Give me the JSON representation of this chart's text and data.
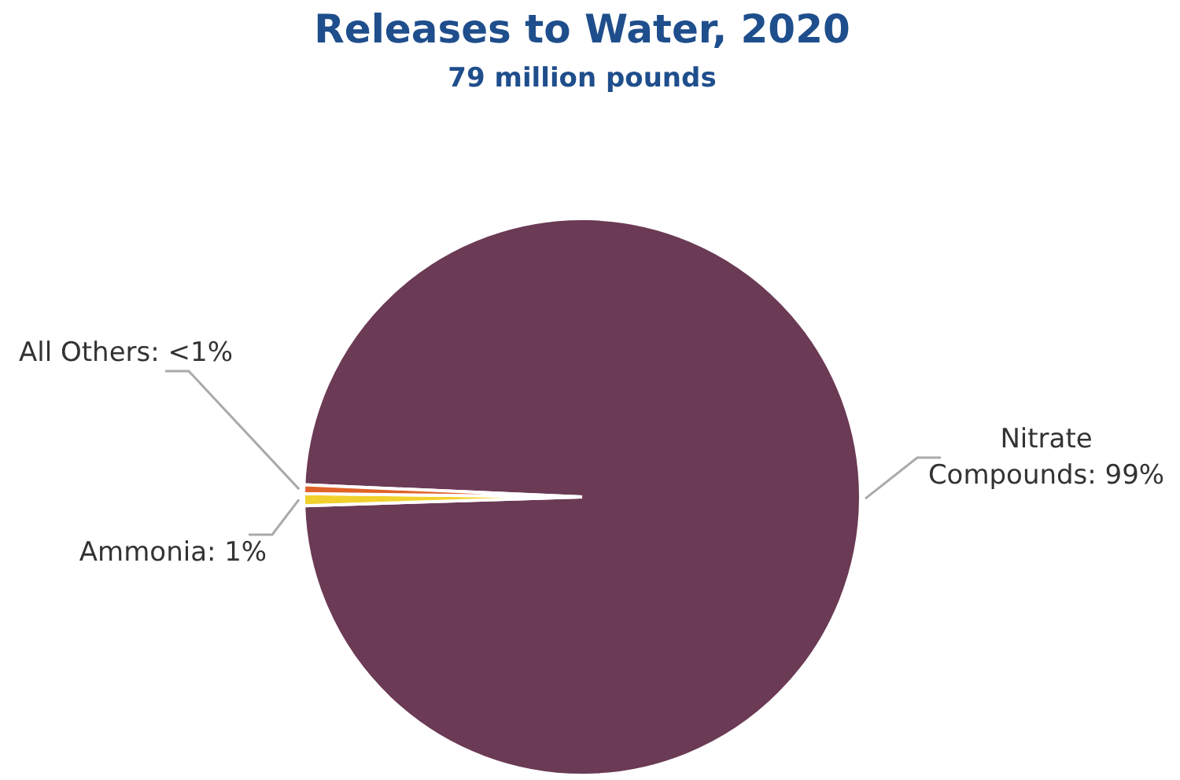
{
  "chart_data": {
    "type": "pie",
    "title": "Releases to Water, 2020",
    "subtitle": "79 million pounds",
    "categories": [
      "Nitrate Compounds",
      "Ammonia",
      "All Others"
    ],
    "values": [
      98.8,
      0.7,
      0.5
    ],
    "colors": [
      "#6b3a55",
      "#f2d12e",
      "#e0622a"
    ],
    "value_labels": [
      "99%",
      "1%",
      "<1%"
    ],
    "legend": false
  }
}
